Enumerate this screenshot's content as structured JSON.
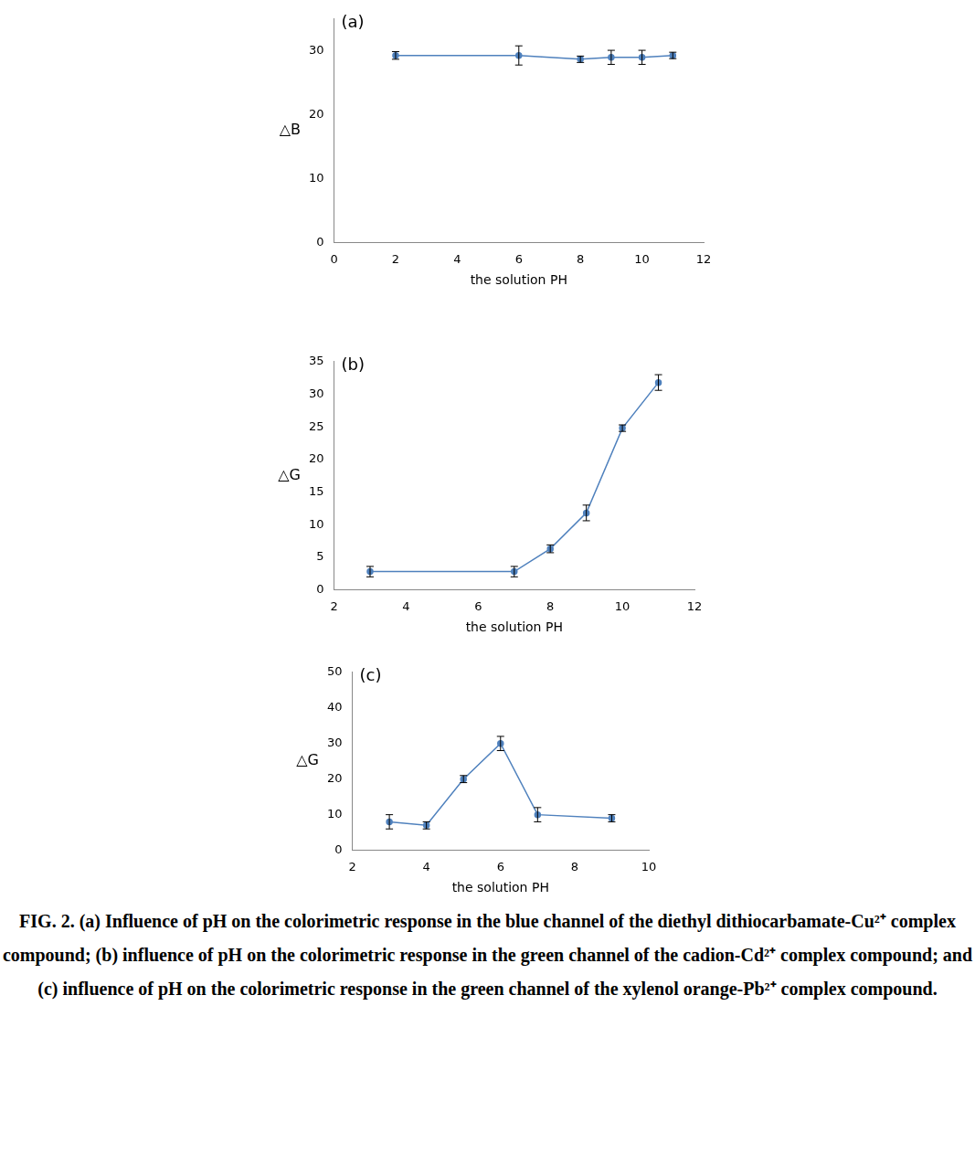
{
  "chart_data": [
    {
      "type": "line",
      "title": "(a)",
      "x_label": "the solution PH",
      "y_label": "△B",
      "xlim": [
        0,
        12
      ],
      "xticks": [
        0,
        2,
        4,
        6,
        8,
        10,
        12
      ],
      "ylim": [
        0,
        35
      ],
      "yticks": [
        0,
        10,
        20,
        30
      ],
      "grid": false,
      "series": [
        {
          "name": "△B",
          "color": "#4f81bd",
          "marker": "circle",
          "line_style": "solid",
          "x": [
            2,
            6,
            8,
            9,
            10,
            11
          ],
          "values": [
            29.3,
            29.3,
            28.7,
            29.0,
            29.0,
            29.3
          ],
          "errors": [
            0.6,
            1.5,
            0.5,
            1.1,
            1.1,
            0.5
          ]
        }
      ]
    },
    {
      "type": "line",
      "title": "(b)",
      "x_label": "the solution PH",
      "y_label": "△G",
      "xlim": [
        2,
        12
      ],
      "xticks": [
        2,
        4,
        6,
        8,
        10,
        12
      ],
      "ylim": [
        0,
        35
      ],
      "yticks": [
        0,
        5,
        10,
        15,
        20,
        25,
        30,
        35
      ],
      "grid": false,
      "series": [
        {
          "name": "△G",
          "color": "#4f81bd",
          "marker": "circle",
          "line_style": "solid",
          "x": [
            3,
            7,
            8,
            9,
            10,
            11
          ],
          "values": [
            2.8,
            2.8,
            6.3,
            11.8,
            24.8,
            31.8
          ],
          "errors": [
            0.8,
            0.8,
            0.6,
            1.2,
            0.5,
            1.2
          ]
        }
      ]
    },
    {
      "type": "line",
      "title": "(c)",
      "x_label": "the solution PH",
      "y_label": "△G",
      "xlim": [
        2,
        10
      ],
      "xticks": [
        2,
        4,
        6,
        8,
        10
      ],
      "ylim": [
        0,
        50
      ],
      "yticks": [
        0,
        10,
        20,
        30,
        40,
        50
      ],
      "grid": false,
      "series": [
        {
          "name": "△G",
          "color": "#4f81bd",
          "marker": "circle",
          "line_style": "solid",
          "x": [
            3,
            4,
            5,
            6,
            7,
            9
          ],
          "values": [
            8,
            7,
            20,
            30,
            10,
            9
          ],
          "errors": [
            2,
            1,
            1,
            2,
            2,
            1
          ]
        }
      ]
    }
  ],
  "caption": "FIG. 2. (a) Influence of pH on the colorimetric response in the blue channel of the diethyl dithiocarbamate-Cu²⁺ complex compound; (b) influence of pH on the colorimetric response in the green channel of the cadion-Cd²⁺ complex compound; and (c) influence of pH on the colorimetric response in the green channel of the xylenol orange-Pb²⁺ complex compound."
}
